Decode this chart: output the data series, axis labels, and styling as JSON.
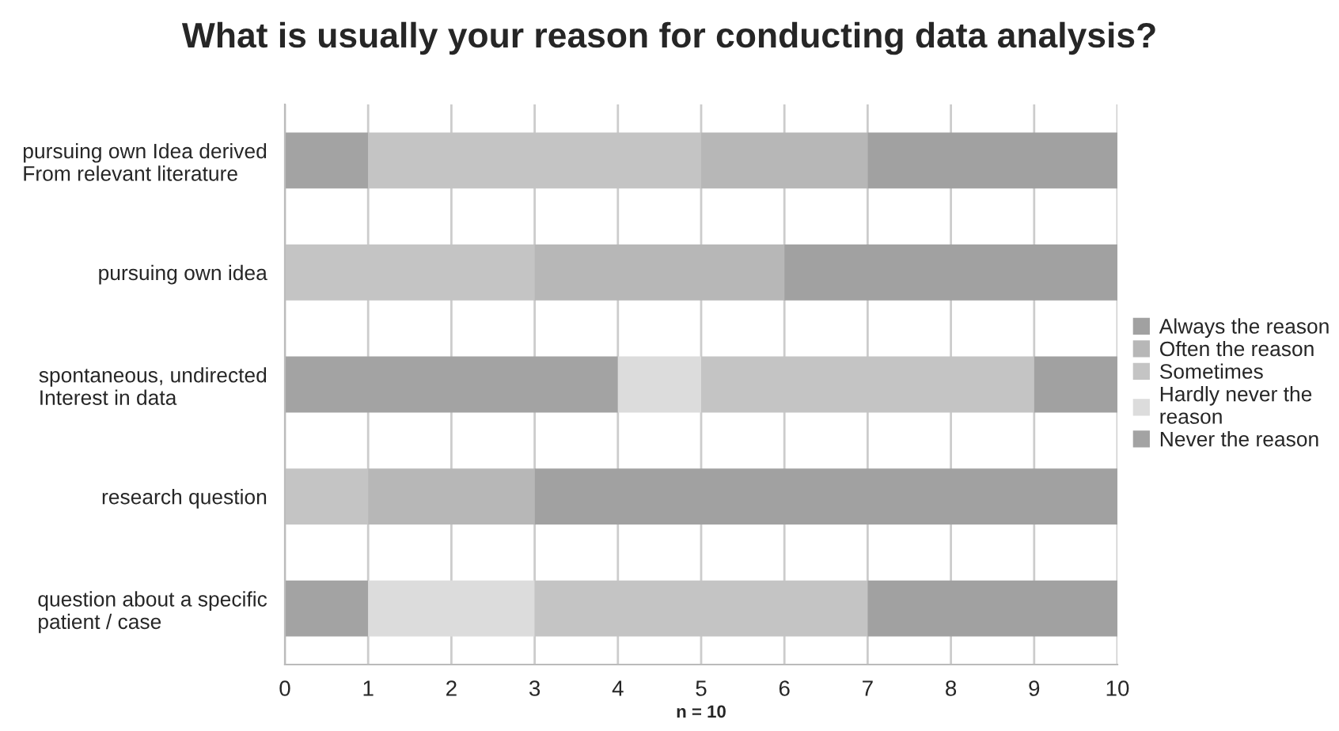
{
  "chart_data": {
    "type": "bar",
    "orientation": "horizontal",
    "stacked": true,
    "title": "What is usually your reason for conducting data analysis?",
    "xlabel": "n = 10",
    "categories": [
      "pursuing own Idea derived\nFrom relevant literature",
      "pursuing own idea",
      "spontaneous, undirected\nInterest in data",
      "research question",
      "question about a specific\npatient / case"
    ],
    "series": [
      {
        "name": "Never the reason",
        "color": "#a3a3a3",
        "values": [
          1,
          0,
          4,
          0,
          1
        ]
      },
      {
        "name": "Hardly never the\nreason",
        "color": "#dcdcdc",
        "values": [
          0,
          0,
          1,
          0,
          2
        ]
      },
      {
        "name": "Sometimes",
        "color": "#c4c4c4",
        "values": [
          4,
          3,
          4,
          1,
          4
        ]
      },
      {
        "name": "Often the reason",
        "color": "#b7b7b7",
        "values": [
          2,
          3,
          0,
          2,
          0
        ]
      },
      {
        "name": "Always the reason",
        "color": "#a1a1a1",
        "values": [
          3,
          4,
          1,
          7,
          3
        ]
      }
    ],
    "xlim": [
      0,
      10
    ],
    "xticks": [
      0,
      1,
      2,
      3,
      4,
      5,
      6,
      7,
      8,
      9,
      10
    ],
    "grid": "x",
    "legend": "right"
  }
}
